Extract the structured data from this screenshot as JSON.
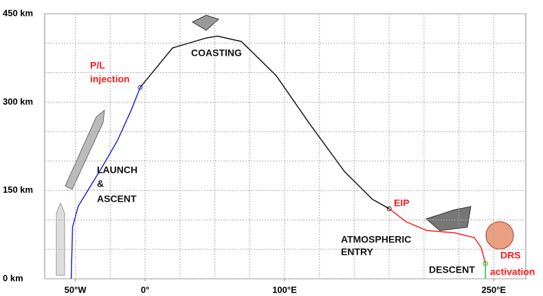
{
  "chart_data": {
    "type": "line",
    "xlim": [
      -72,
      273
    ],
    "ylim": [
      0,
      450
    ],
    "xticks": [
      {
        "value": -50,
        "label": "50°W"
      },
      {
        "value": 0,
        "label": "0°"
      },
      {
        "value": 100,
        "label": "100°E"
      },
      {
        "value": 250,
        "label": "250°E"
      }
    ],
    "yticks": [
      {
        "value": 0,
        "label": "0 km"
      },
      {
        "value": 150,
        "label": "150 km"
      },
      {
        "value": 300,
        "label": "300 km"
      },
      {
        "value": 450,
        "label": "450 km"
      }
    ],
    "x_grid": [
      -50,
      -25,
      0,
      25,
      50,
      75,
      100,
      125,
      150,
      175,
      200,
      225,
      250
    ],
    "y_grid": [
      50,
      100,
      200,
      250,
      350,
      400
    ],
    "series": [
      {
        "color": "#2323d8",
        "x": [
          -53,
          -52,
          -48,
          -39,
          -30,
          -20,
          -10,
          -3.5
        ],
        "values": [
          0,
          88,
          123,
          158,
          193,
          234,
          286,
          325
        ],
        "end_marker": true
      },
      {
        "color": "#111111",
        "x": [
          -3.5,
          19.7,
          44,
          52,
          69,
          94,
          118,
          143,
          163,
          175
        ],
        "values": [
          325,
          392,
          409,
          412,
          403,
          345,
          263,
          182,
          135,
          119
        ],
        "end_marker": true
      },
      {
        "color": "#ff1a1a",
        "x": [
          175,
          187,
          202,
          222,
          236,
          241,
          244
        ],
        "values": [
          119,
          97,
          82,
          78,
          70,
          53,
          26
        ],
        "end_marker": true
      },
      {
        "color": "#22cc22",
        "x": [
          244,
          244
        ],
        "values": [
          26,
          0
        ],
        "end_marker": false
      }
    ],
    "annotations": [
      {
        "text": "P/L",
        "color": "#ff1a1a"
      },
      {
        "text": "injection",
        "color": "#ff1a1a"
      },
      {
        "text": "COASTING",
        "color": "#111111"
      },
      {
        "text": "LAUNCH",
        "color": "#111111"
      },
      {
        "text": "&",
        "color": "#111111"
      },
      {
        "text": "ASCENT",
        "color": "#111111"
      },
      {
        "text": "EIP",
        "color": "#ff1a1a"
      },
      {
        "text": "ATMOSPHERIC",
        "color": "#111111"
      },
      {
        "text": "ENTRY",
        "color": "#111111"
      },
      {
        "text": "DESCENT",
        "color": "#111111"
      },
      {
        "text": "DRS",
        "color": "#ff1a1a"
      },
      {
        "text": "activation",
        "color": "#ff1a1a"
      }
    ]
  }
}
